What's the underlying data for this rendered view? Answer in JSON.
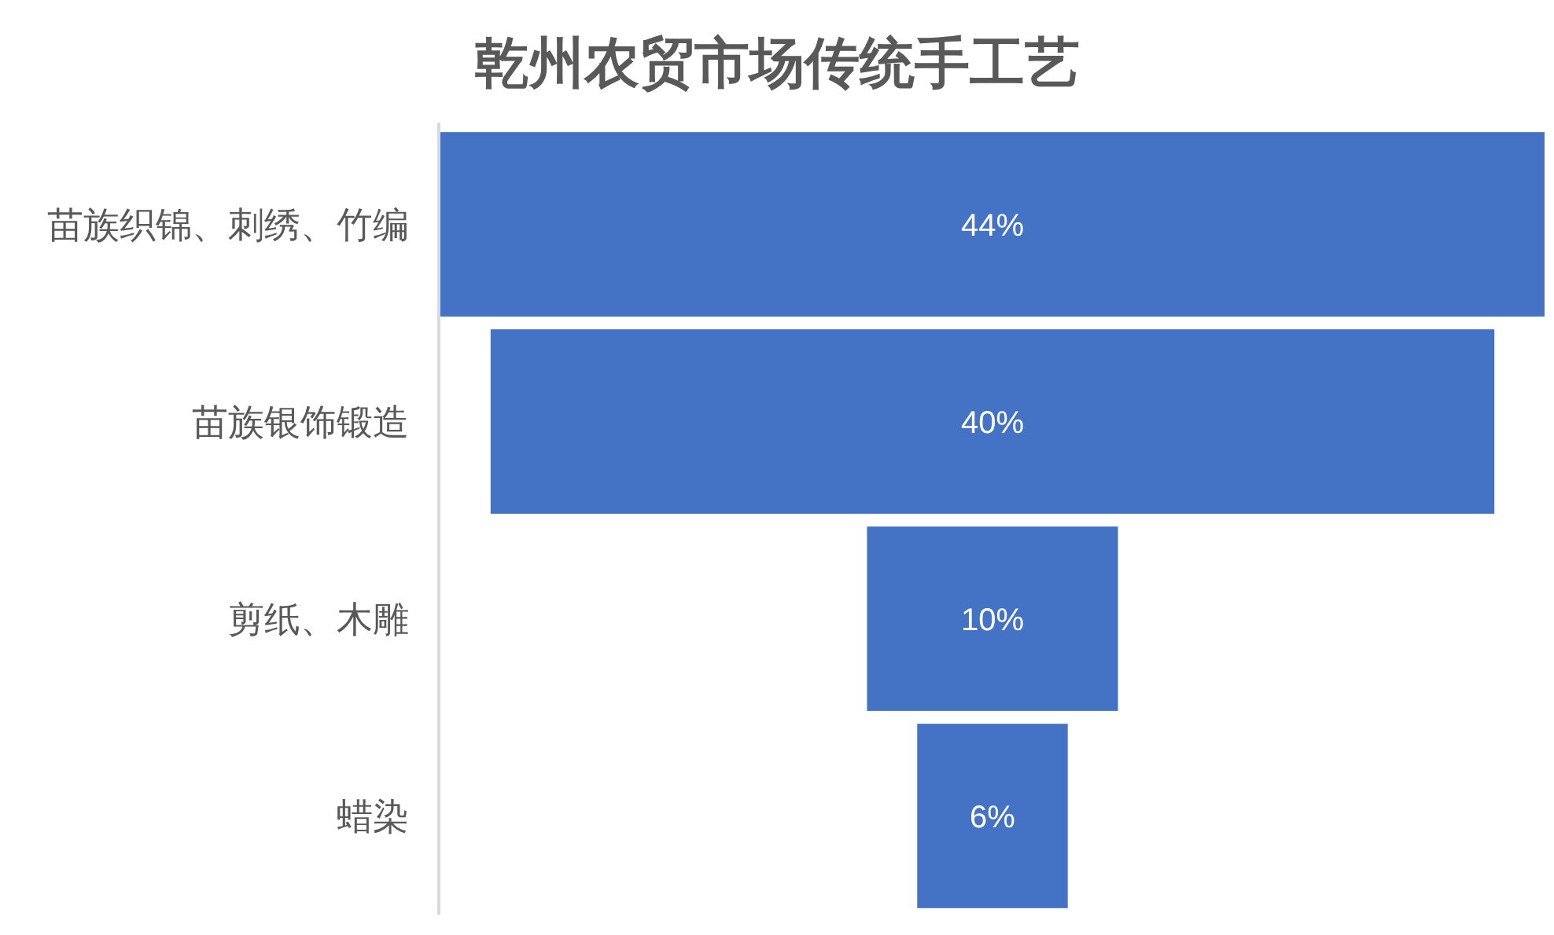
{
  "chart_data": {
    "type": "other",
    "title": "乾州农贸市场传统手工艺",
    "categories": [
      "苗族织锦、刺绣、竹编",
      "苗族银饰锻造",
      "剪纸、木雕",
      "蜡染"
    ],
    "values": [
      44,
      40,
      10,
      6
    ],
    "value_labels": [
      "44%",
      "40%",
      "10%",
      "6%"
    ],
    "color": "#4472c4"
  }
}
